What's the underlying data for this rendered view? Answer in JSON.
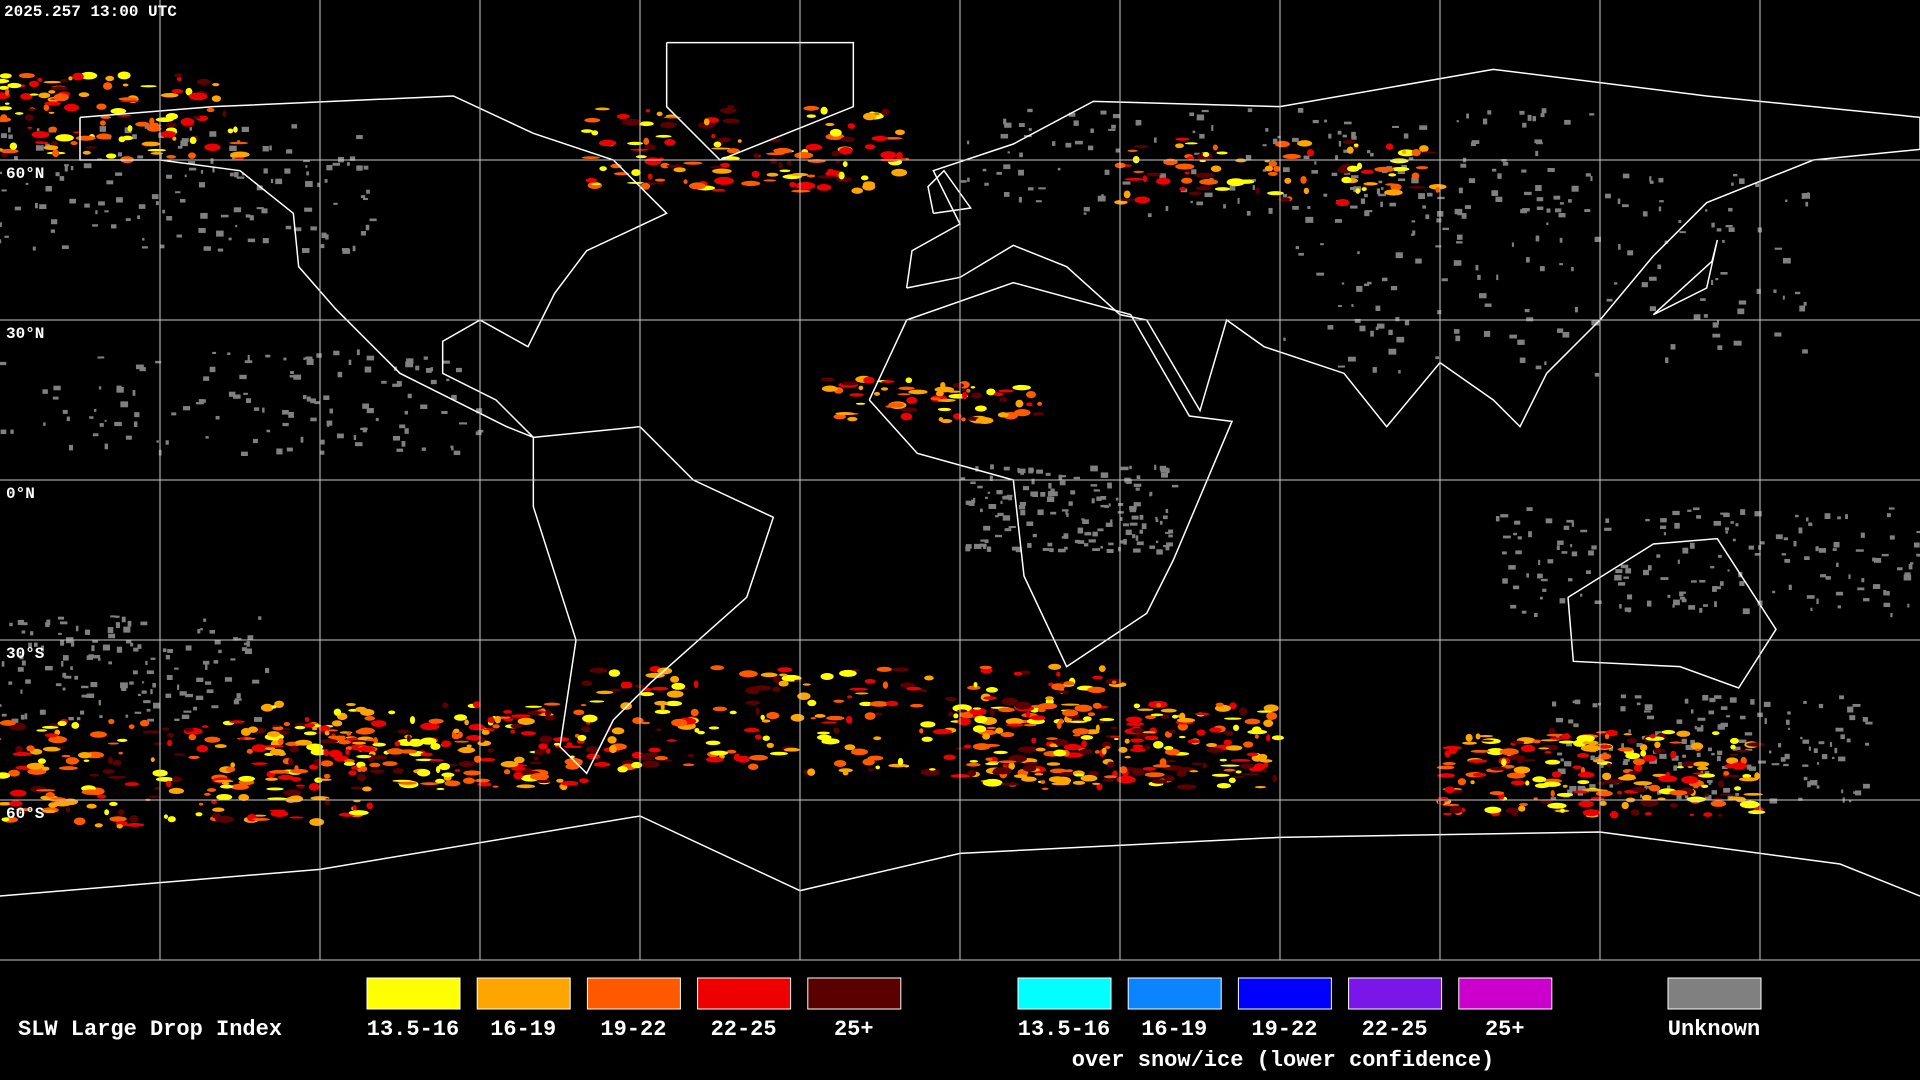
{
  "timestamp": "2025.257 13:00 UTC",
  "latitude_labels": [
    "60°N",
    "30°N",
    "0°N",
    "30°S",
    "60°S"
  ],
  "legend": {
    "title": "SLW Large Drop Index",
    "items": [
      {
        "label": "13.5-16",
        "color": "#ffff00"
      },
      {
        "label": "16-19",
        "color": "#ffa500"
      },
      {
        "label": "19-22",
        "color": "#ff5a00"
      },
      {
        "label": "22-25",
        "color": "#ee0000"
      },
      {
        "label": "25+",
        "color": "#5a0000"
      }
    ],
    "snow_items": [
      {
        "label": "13.5-16",
        "color": "#00ffff"
      },
      {
        "label": "16-19",
        "color": "#0a84ff"
      },
      {
        "label": "19-22",
        "color": "#0000ff"
      },
      {
        "label": "22-25",
        "color": "#7a16e8"
      },
      {
        "label": "25+",
        "color": "#cc00cc"
      }
    ],
    "snow_note": "over snow/ice (lower confidence)",
    "unknown": {
      "label": "Unknown",
      "color": "#808080"
    }
  }
}
